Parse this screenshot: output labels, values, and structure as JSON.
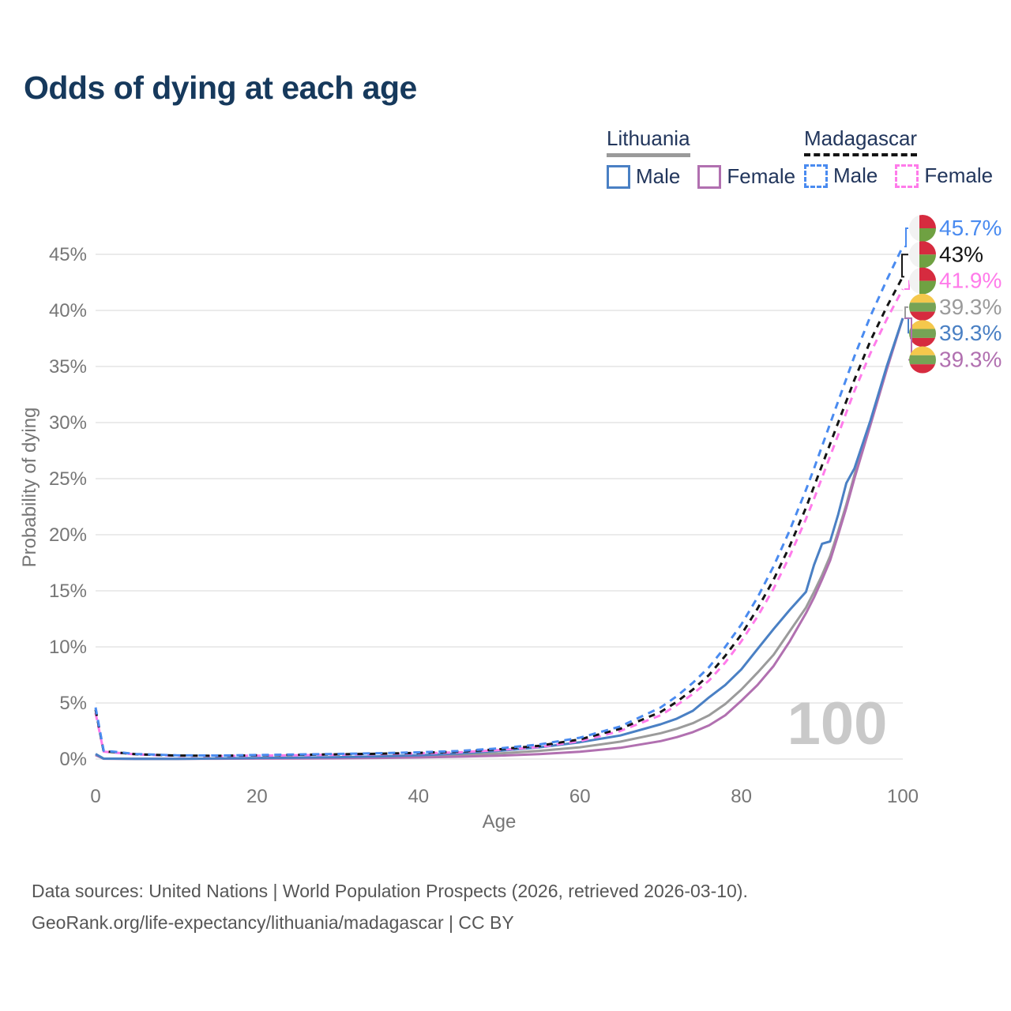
{
  "title": "Odds of dying at each age",
  "legend": {
    "groups": [
      {
        "label": "Lithuania",
        "underline": "solid",
        "items": [
          {
            "label": "Male",
            "color": "#4a80c4",
            "dashed": false
          },
          {
            "label": "Female",
            "color": "#b170b0",
            "dashed": false
          }
        ]
      },
      {
        "label": "Madagascar",
        "underline": "dashed",
        "items": [
          {
            "label": "Male",
            "color": "#4a8bf0",
            "dashed": true
          },
          {
            "label": "Female",
            "color": "#ff7bea",
            "dashed": true
          }
        ]
      }
    ]
  },
  "chart_data": {
    "type": "line",
    "title": "Odds of dying at each age",
    "xlabel": "Age",
    "ylabel": "Probability of dying",
    "xlim": [
      0,
      100
    ],
    "ylim": [
      0,
      47.5
    ],
    "x_ticks": [
      0,
      20,
      40,
      60,
      80,
      100
    ],
    "y_ticks": [
      0,
      5,
      10,
      15,
      20,
      25,
      30,
      35,
      40,
      45
    ],
    "y_tick_suffix": "%",
    "grid": "horizontal",
    "watermark": "100",
    "x": [
      0,
      1,
      5,
      10,
      15,
      20,
      25,
      30,
      35,
      40,
      45,
      50,
      55,
      60,
      65,
      70,
      72,
      74,
      76,
      78,
      80,
      82,
      84,
      86,
      88,
      89,
      90,
      91,
      92,
      93,
      94,
      96,
      98,
      100
    ],
    "series": [
      {
        "id": "lt-both",
        "name": "Lithuania Both sexes",
        "color": "#9b9b9b",
        "dash": null,
        "values": [
          0.4,
          0.035,
          0.015,
          0.015,
          0.04,
          0.07,
          0.09,
          0.12,
          0.17,
          0.24,
          0.35,
          0.5,
          0.73,
          1.05,
          1.55,
          2.3,
          2.7,
          3.2,
          3.9,
          4.9,
          6.2,
          7.7,
          9.3,
          11.4,
          13.5,
          14.9,
          16.4,
          18.1,
          20.3,
          22.7,
          25.3,
          30.1,
          34.9,
          39.3
        ]
      },
      {
        "id": "lt-female",
        "name": "Lithuania Female",
        "color": "#b170b0",
        "dash": null,
        "values": [
          0.35,
          0.03,
          0.012,
          0.012,
          0.025,
          0.04,
          0.05,
          0.07,
          0.1,
          0.14,
          0.21,
          0.3,
          0.44,
          0.65,
          1.0,
          1.6,
          1.95,
          2.4,
          3.0,
          3.9,
          5.2,
          6.6,
          8.3,
          10.5,
          13.0,
          14.4,
          16.0,
          17.7,
          20.0,
          22.4,
          25.0,
          29.8,
          34.7,
          39.3
        ]
      },
      {
        "id": "lt-male",
        "name": "Lithuania Male",
        "color": "#4a80c4",
        "dash": null,
        "values": [
          0.45,
          0.04,
          0.02,
          0.02,
          0.05,
          0.1,
          0.13,
          0.17,
          0.24,
          0.34,
          0.5,
          0.73,
          1.05,
          1.5,
          2.1,
          3.1,
          3.6,
          4.3,
          5.5,
          6.6,
          8.0,
          9.8,
          11.6,
          13.3,
          14.9,
          17.3,
          19.2,
          19.4,
          21.8,
          24.6,
          25.9,
          30.2,
          35.0,
          39.3
        ]
      },
      {
        "id": "mg-female",
        "name": "Madagascar Female",
        "color": "#ff7bea",
        "dash": "9 7",
        "values": [
          4.1,
          0.66,
          0.41,
          0.29,
          0.27,
          0.3,
          0.34,
          0.38,
          0.43,
          0.5,
          0.6,
          0.8,
          1.08,
          1.6,
          2.5,
          3.9,
          4.8,
          5.8,
          7.0,
          8.6,
          10.5,
          12.7,
          15.2,
          18.1,
          21.4,
          23.2,
          25.1,
          27.0,
          28.9,
          30.9,
          32.8,
          36.2,
          39.2,
          41.9
        ]
      },
      {
        "id": "mg-both",
        "name": "Madagascar Both sexes",
        "color": "#141414",
        "dash": "8 7",
        "values": [
          4.4,
          0.7,
          0.43,
          0.31,
          0.29,
          0.33,
          0.37,
          0.42,
          0.47,
          0.55,
          0.66,
          0.87,
          1.18,
          1.75,
          2.7,
          4.2,
          5.1,
          6.2,
          7.5,
          9.2,
          11.1,
          13.4,
          16.0,
          19.0,
          22.4,
          24.3,
          26.2,
          28.1,
          30.0,
          31.9,
          33.8,
          37.3,
          40.3,
          43.0
        ]
      },
      {
        "id": "mg-male",
        "name": "Madagascar Male",
        "color": "#4a8bf0",
        "dash": "9 7",
        "values": [
          4.6,
          0.75,
          0.45,
          0.33,
          0.31,
          0.36,
          0.41,
          0.46,
          0.52,
          0.6,
          0.72,
          0.95,
          1.3,
          1.9,
          2.9,
          4.6,
          5.6,
          6.8,
          8.2,
          10.0,
          12.0,
          14.4,
          17.2,
          20.4,
          24.0,
          25.9,
          27.9,
          29.9,
          31.9,
          33.9,
          35.9,
          39.5,
          42.7,
          45.7
        ]
      }
    ],
    "end_labels": [
      {
        "series": "mg-male",
        "text": "45.7%",
        "flag": "madagascar",
        "color": "#4a8bf0"
      },
      {
        "series": "mg-both",
        "text": "43%",
        "flag": "madagascar",
        "color": "#141414"
      },
      {
        "series": "mg-female",
        "text": "41.9%",
        "flag": "madagascar",
        "color": "#ff7bea"
      },
      {
        "series": "lt-both",
        "text": "39.3%",
        "flag": "lithuania",
        "color": "#9b9b9b"
      },
      {
        "series": "lt-male",
        "text": "39.3%",
        "flag": "lithuania",
        "color": "#4a80c4"
      },
      {
        "series": "lt-female",
        "text": "39.3%",
        "flag": "lithuania",
        "color": "#b170b0"
      }
    ],
    "flags": {
      "madagascar": {
        "bands": "vertical-half",
        "colors": {
          "white": "#f2f2f2",
          "red": "#d62b3f",
          "green": "#6fa142"
        }
      },
      "lithuania": {
        "bands": "horizontal-thirds",
        "colors": {
          "yellow": "#f5c84c",
          "green": "#76a355",
          "red": "#d62b3f"
        }
      }
    }
  },
  "footer": {
    "line1": "Data sources: United Nations | World Population Prospects (2026, retrieved 2026-03-10).",
    "line2": "GeoRank.org/life-expectancy/lithuania/madagascar | CC BY"
  }
}
